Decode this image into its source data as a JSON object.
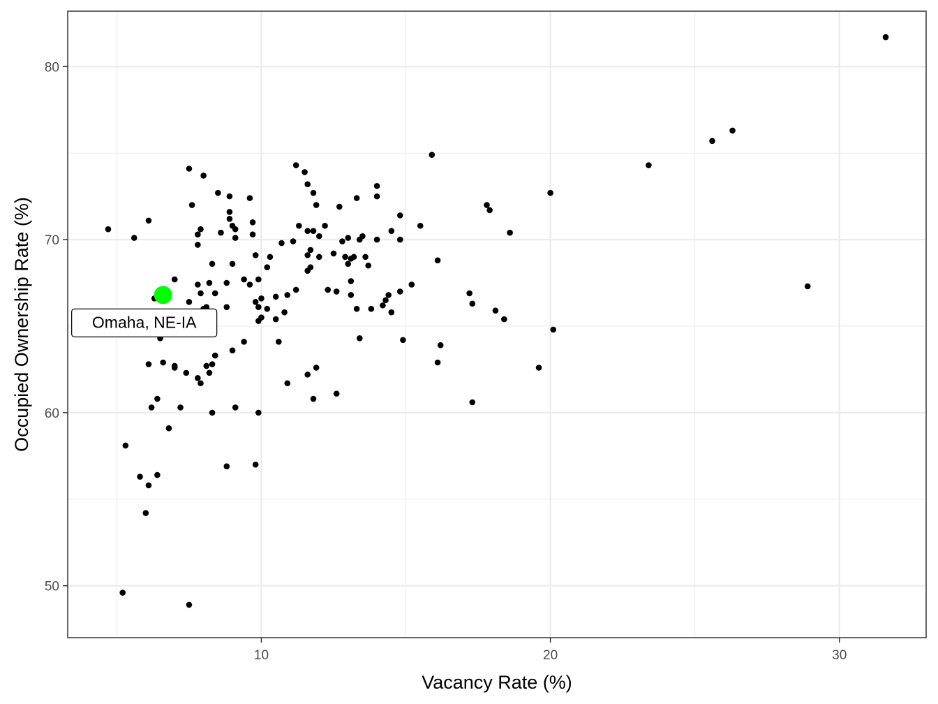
{
  "chart_data": {
    "type": "scatter",
    "xlabel": "Vacancy Rate (%)",
    "ylabel": "Occupied Ownership Rate (%)",
    "xlim": [
      3.3,
      33.0
    ],
    "ylim": [
      47.0,
      83.2
    ],
    "x_ticks": [
      10,
      20,
      30
    ],
    "y_ticks": [
      50,
      60,
      70,
      80
    ],
    "x_tick_labels": [
      "10",
      "20",
      "30"
    ],
    "y_tick_labels": [
      "50",
      "60",
      "70",
      "80"
    ],
    "grid": true,
    "legend": "none",
    "colors": {
      "points": "#000000",
      "highlight": "#00ff00",
      "grid": "#ebebeb",
      "panel_border": "#333333"
    },
    "highlight": {
      "label": "Omaha, NE-IA",
      "x": 6.6,
      "y": 66.8
    },
    "points": [
      [
        4.7,
        70.6
      ],
      [
        5.6,
        70.1
      ],
      [
        6.1,
        71.1
      ],
      [
        6.3,
        66.6
      ],
      [
        5.3,
        58.1
      ],
      [
        5.2,
        49.6
      ],
      [
        5.8,
        56.3
      ],
      [
        6.1,
        55.8
      ],
      [
        6.4,
        56.4
      ],
      [
        6.0,
        54.2
      ],
      [
        6.2,
        60.3
      ],
      [
        6.4,
        60.8
      ],
      [
        6.1,
        62.8
      ],
      [
        6.5,
        64.3
      ],
      [
        6.6,
        62.9
      ],
      [
        7.0,
        62.7
      ],
      [
        7.0,
        62.6
      ],
      [
        6.8,
        59.1
      ],
      [
        7.2,
        60.3
      ],
      [
        7.4,
        62.3
      ],
      [
        7.5,
        66.4
      ],
      [
        7.5,
        48.9
      ],
      [
        7.0,
        67.7
      ],
      [
        7.6,
        72.0
      ],
      [
        7.5,
        74.1
      ],
      [
        7.8,
        70.3
      ],
      [
        7.8,
        69.7
      ],
      [
        7.9,
        70.6
      ],
      [
        7.8,
        67.4
      ],
      [
        7.9,
        66.9
      ],
      [
        8.1,
        66.1
      ],
      [
        8.0,
        66.0
      ],
      [
        7.8,
        62.0
      ],
      [
        7.9,
        61.7
      ],
      [
        8.1,
        62.7
      ],
      [
        8.2,
        62.3
      ],
      [
        8.3,
        62.8
      ],
      [
        8.4,
        63.3
      ],
      [
        8.3,
        60.0
      ],
      [
        8.0,
        73.7
      ],
      [
        8.5,
        72.7
      ],
      [
        8.6,
        70.4
      ],
      [
        8.3,
        68.6
      ],
      [
        8.2,
        67.5
      ],
      [
        8.4,
        66.9
      ],
      [
        8.8,
        67.5
      ],
      [
        8.8,
        66.1
      ],
      [
        8.8,
        56.9
      ],
      [
        9.1,
        60.3
      ],
      [
        9.0,
        63.6
      ],
      [
        8.9,
        72.5
      ],
      [
        8.9,
        71.6
      ],
      [
        8.9,
        71.2
      ],
      [
        9.0,
        70.8
      ],
      [
        9.1,
        70.6
      ],
      [
        9.1,
        70.1
      ],
      [
        9.0,
        68.6
      ],
      [
        9.6,
        72.4
      ],
      [
        9.7,
        71.0
      ],
      [
        9.7,
        70.3
      ],
      [
        9.4,
        67.7
      ],
      [
        9.6,
        67.4
      ],
      [
        9.4,
        64.1
      ],
      [
        9.8,
        69.1
      ],
      [
        9.8,
        66.4
      ],
      [
        9.9,
        67.7
      ],
      [
        9.9,
        66.1
      ],
      [
        10.0,
        66.6
      ],
      [
        10.0,
        65.5
      ],
      [
        9.9,
        65.3
      ],
      [
        10.2,
        66.0
      ],
      [
        9.9,
        60.0
      ],
      [
        9.8,
        57.0
      ],
      [
        10.2,
        68.4
      ],
      [
        10.3,
        69.0
      ],
      [
        10.5,
        66.7
      ],
      [
        10.5,
        65.4
      ],
      [
        10.6,
        64.1
      ],
      [
        10.8,
        65.8
      ],
      [
        10.7,
        69.8
      ],
      [
        10.9,
        66.8
      ],
      [
        10.9,
        61.7
      ],
      [
        11.1,
        69.9
      ],
      [
        11.2,
        74.3
      ],
      [
        11.2,
        67.1
      ],
      [
        11.3,
        70.8
      ],
      [
        11.5,
        73.9
      ],
      [
        11.6,
        73.2
      ],
      [
        11.6,
        70.5
      ],
      [
        11.6,
        69.1
      ],
      [
        11.7,
        69.4
      ],
      [
        11.6,
        68.2
      ],
      [
        11.7,
        68.4
      ],
      [
        11.6,
        62.2
      ],
      [
        11.8,
        60.8
      ],
      [
        11.8,
        72.7
      ],
      [
        11.9,
        72.0
      ],
      [
        11.8,
        70.5
      ],
      [
        12.0,
        70.2
      ],
      [
        12.0,
        69.0
      ],
      [
        11.9,
        62.6
      ],
      [
        12.2,
        70.8
      ],
      [
        12.3,
        67.1
      ],
      [
        12.5,
        69.2
      ],
      [
        12.6,
        67.0
      ],
      [
        12.7,
        71.9
      ],
      [
        12.6,
        61.1
      ],
      [
        12.8,
        69.9
      ],
      [
        13.0,
        70.1
      ],
      [
        12.9,
        69.0
      ],
      [
        13.1,
        68.9
      ],
      [
        13.2,
        69.0
      ],
      [
        13.0,
        68.6
      ],
      [
        13.1,
        67.6
      ],
      [
        13.1,
        66.8
      ],
      [
        13.3,
        66.0
      ],
      [
        13.3,
        72.4
      ],
      [
        13.4,
        70.0
      ],
      [
        13.5,
        70.2
      ],
      [
        13.6,
        69.0
      ],
      [
        13.7,
        68.5
      ],
      [
        13.8,
        66.0
      ],
      [
        13.4,
        64.3
      ],
      [
        14.0,
        73.1
      ],
      [
        14.0,
        72.5
      ],
      [
        14.0,
        70.0
      ],
      [
        14.2,
        66.2
      ],
      [
        14.4,
        66.8
      ],
      [
        14.3,
        66.5
      ],
      [
        14.5,
        65.8
      ],
      [
        14.5,
        70.5
      ],
      [
        14.8,
        71.4
      ],
      [
        14.8,
        70.0
      ],
      [
        14.8,
        67.0
      ],
      [
        14.9,
        64.2
      ],
      [
        15.2,
        67.4
      ],
      [
        15.5,
        70.8
      ],
      [
        15.9,
        74.9
      ],
      [
        16.1,
        68.8
      ],
      [
        16.1,
        62.9
      ],
      [
        16.2,
        63.9
      ],
      [
        17.2,
        66.9
      ],
      [
        17.3,
        66.3
      ],
      [
        17.3,
        60.6
      ],
      [
        17.8,
        72.0
      ],
      [
        17.9,
        71.7
      ],
      [
        18.1,
        65.9
      ],
      [
        18.4,
        65.4
      ],
      [
        18.6,
        70.4
      ],
      [
        19.6,
        62.6
      ],
      [
        20.0,
        72.7
      ],
      [
        20.1,
        64.8
      ],
      [
        23.4,
        74.3
      ],
      [
        25.6,
        75.7
      ],
      [
        26.3,
        76.3
      ],
      [
        28.9,
        67.3
      ],
      [
        31.6,
        81.7
      ]
    ]
  }
}
